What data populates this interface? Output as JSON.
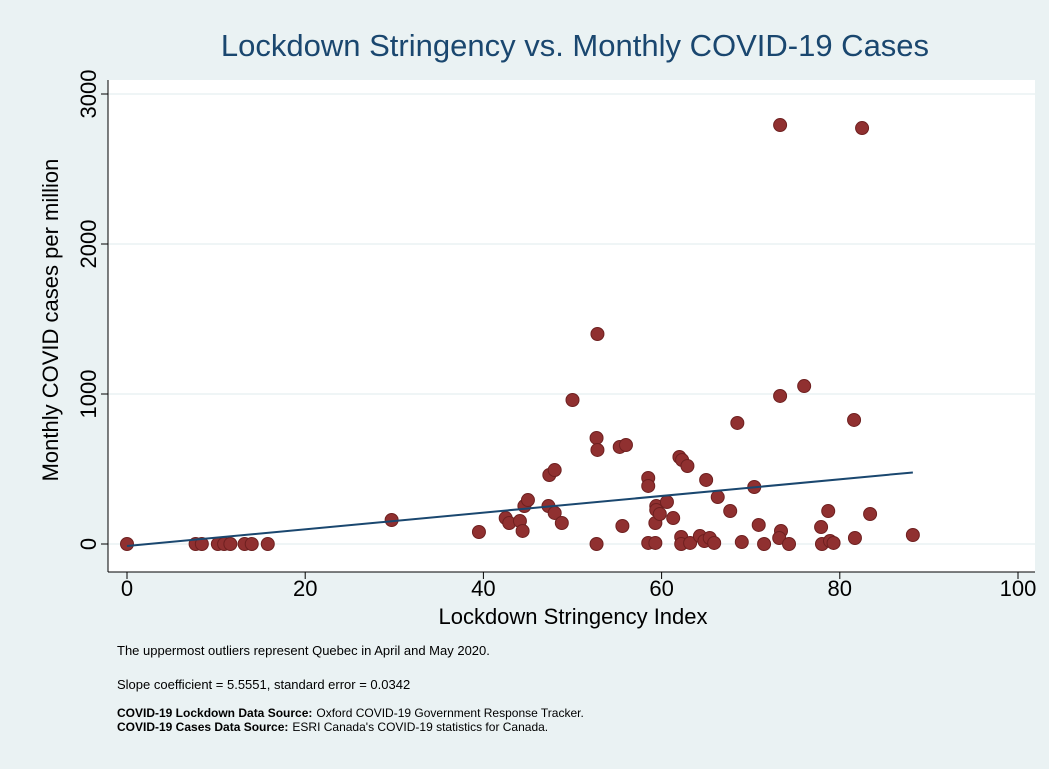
{
  "chart_data": {
    "type": "scatter",
    "title": "Lockdown Stringency vs. Monthly COVID-19 Cases",
    "xlabel": "Lockdown Stringency Index",
    "ylabel": "Monthly COVID cases per million",
    "xlim": [
      0,
      100
    ],
    "xticks": [
      0,
      20,
      40,
      60,
      80,
      100
    ],
    "ylim": [
      0,
      3000
    ],
    "yticks": [
      0,
      1000,
      2000,
      3000
    ],
    "grid": true,
    "color": "#903030",
    "x": [
      0,
      7.7,
      8.4,
      10.2,
      10.9,
      11.6,
      13.2,
      14,
      15.8,
      29.7,
      39.5,
      42.5,
      42.9,
      44.1,
      44.4,
      44.6,
      45,
      47.4,
      48,
      47.3,
      48,
      48.8,
      50,
      52.7,
      52.8,
      52.8,
      52.7,
      55.3,
      56,
      55.6,
      58.5,
      58.5,
      58.5,
      59.3,
      59.3,
      59.4,
      59.4,
      59.8,
      60.6,
      61.3,
      62,
      62.3,
      62.9,
      62.2,
      62.2,
      63.2,
      64.3,
      64.8,
      65,
      65.4,
      65.9,
      66.3,
      67.7,
      68.5,
      69,
      70.4,
      70.9,
      71.5,
      73.3,
      73.3,
      73.4,
      73.2,
      74.3,
      76,
      77.9,
      78,
      78.7,
      78.9,
      79.3,
      81.6,
      81.7,
      82.5,
      83.4,
      88.2
    ],
    "values": [
      0,
      0,
      0,
      0,
      0,
      0,
      0,
      0,
      0,
      160,
      80,
      173,
      140,
      153,
      87,
      253,
      293,
      460,
      493,
      253,
      207,
      140,
      960,
      707,
      1400,
      627,
      0,
      647,
      660,
      120,
      440,
      387,
      7,
      7,
      140,
      253,
      227,
      200,
      280,
      173,
      580,
      560,
      520,
      47,
      0,
      7,
      53,
      20,
      427,
      40,
      7,
      313,
      220,
      807,
      13,
      380,
      127,
      0,
      987,
      2793,
      87,
      40,
      0,
      1053,
      113,
      0,
      220,
      20,
      7,
      827,
      40,
      2773,
      200,
      60
    ],
    "fit": {
      "color": "#1a476f",
      "x": [
        0,
        88.2
      ],
      "values": [
        -13,
        477
      ]
    }
  },
  "notes": [
    "The uppermost outliers represent Quebec in April and May 2020.",
    "Slope coefficient = 5.5551, standard error = 0.0342"
  ],
  "sources": [
    {
      "label": "COVID-19 Lockdown Data Source:",
      "text": "Oxford COVID-19 Government Response Tracker."
    },
    {
      "label": "COVID-19 Cases Data Source:",
      "text": "ESRI Canada's COVID-19 statistics for Canada."
    }
  ]
}
